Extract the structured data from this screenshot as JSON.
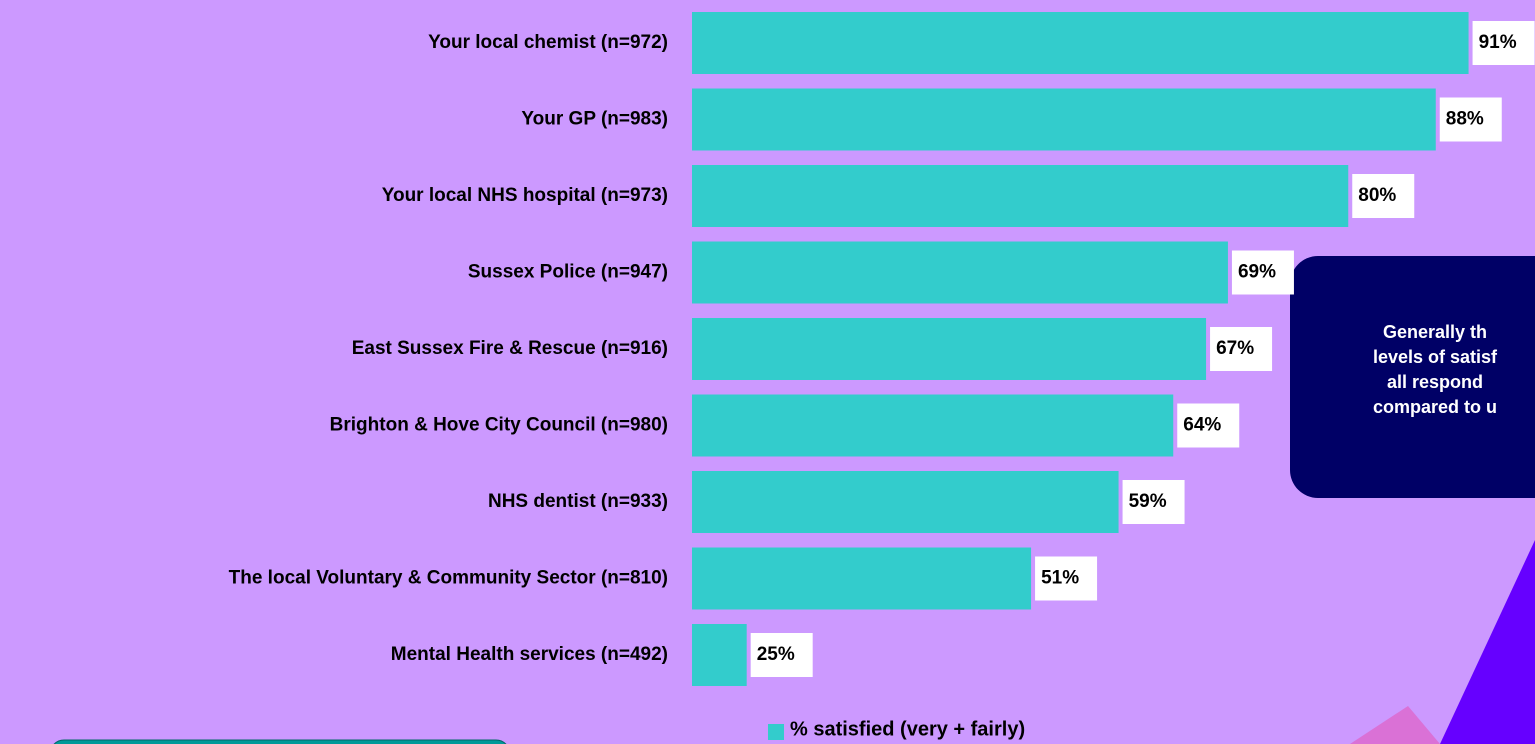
{
  "chart_data": {
    "type": "hbar",
    "categories": [
      "Your local chemist (n=972)",
      "Your GP (n=983)",
      "Your local NHS hospital (n=973)",
      "Sussex Police (n=947)",
      "East Sussex Fire & Rescue (n=916)",
      "Brighton & Hove City Council (n=980)",
      "NHS dentist (n=933)",
      "The local Voluntary & Community Sector (n=810)",
      "Mental Health services (n=492)"
    ],
    "series": [
      {
        "name": "% satisfied (very + fairly)",
        "color": "#33cccc",
        "values": [
          91,
          88,
          80,
          69,
          67,
          64,
          59,
          51,
          25
        ],
        "value_labels": [
          "91%",
          "88%",
          "80%",
          "69%",
          "67%",
          "64%",
          "59%",
          "51%",
          "25%"
        ]
      }
    ],
    "xlim": [
      20,
      100
    ],
    "annotation": [
      "Generally th",
      "levels of satisf",
      "all respond",
      "compared to u"
    ]
  }
}
